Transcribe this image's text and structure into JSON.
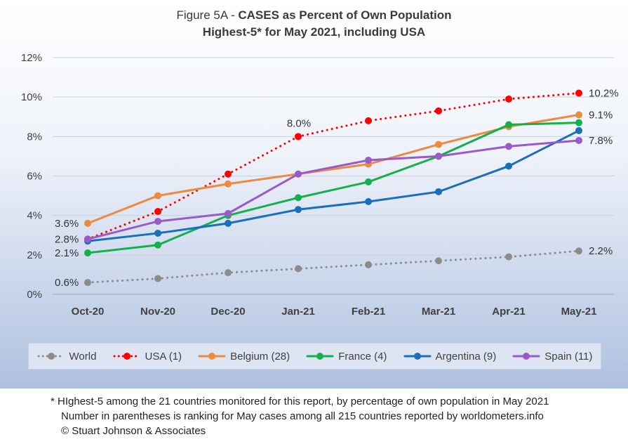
{
  "title": {
    "line1_prefix": "Figure 5A - ",
    "line1_bold": "CASES as Percent of Own Population",
    "line2": "Highest-5* for May 2021, including USA"
  },
  "chart_data": {
    "type": "line",
    "categories": [
      "Oct-20",
      "Nov-20",
      "Dec-20",
      "Jan-21",
      "Feb-21",
      "Mar-21",
      "Apr-21",
      "May-21"
    ],
    "ylim": [
      0,
      12
    ],
    "y_ticks": [
      "0%",
      "2%",
      "4%",
      "6%",
      "8%",
      "10%",
      "12%"
    ],
    "grid": true,
    "legend_position": "bottom",
    "series": [
      {
        "name": "World",
        "color": "#8c8c8c",
        "dotted": true,
        "values": [
          0.6,
          0.8,
          1.1,
          1.3,
          1.5,
          1.7,
          1.9,
          2.2
        ]
      },
      {
        "name": "USA (1)",
        "color": "#ff0000",
        "dotted": true,
        "values": [
          2.8,
          4.2,
          6.1,
          8.0,
          8.8,
          9.3,
          9.9,
          10.2
        ]
      },
      {
        "name": "Belgium (28)",
        "color": "#ed8a3f",
        "dotted": false,
        "values": [
          3.6,
          5.0,
          5.6,
          6.1,
          6.6,
          7.6,
          8.5,
          9.1
        ]
      },
      {
        "name": "France (4)",
        "color": "#14b04c",
        "dotted": false,
        "values": [
          2.1,
          2.5,
          4.0,
          4.9,
          5.7,
          7.0,
          8.6,
          8.7
        ]
      },
      {
        "name": "Argentina (9)",
        "color": "#1a6fbb",
        "dotted": false,
        "values": [
          2.7,
          3.1,
          3.6,
          4.3,
          4.7,
          5.2,
          6.5,
          8.3
        ]
      },
      {
        "name": "Spain (11)",
        "color": "#9b59c9",
        "dotted": false,
        "values": [
          2.8,
          3.7,
          4.1,
          6.1,
          6.8,
          7.0,
          7.5,
          7.8
        ]
      }
    ],
    "annotations": [
      "3.6%",
      "2.8%",
      "2.1%",
      "0.6%",
      "8.0%",
      "10.2%",
      "9.1%",
      "7.8%",
      "2.2%"
    ]
  },
  "footer": {
    "line1": "* HIghest-5 among the 21 countries monitored for this report, by percentage of own population in May 2021",
    "line2": "Number in parentheses is ranking for May cases among all 215 countries reported by worldometers.info",
    "line3": "© Stuart Johnson & Associates"
  }
}
